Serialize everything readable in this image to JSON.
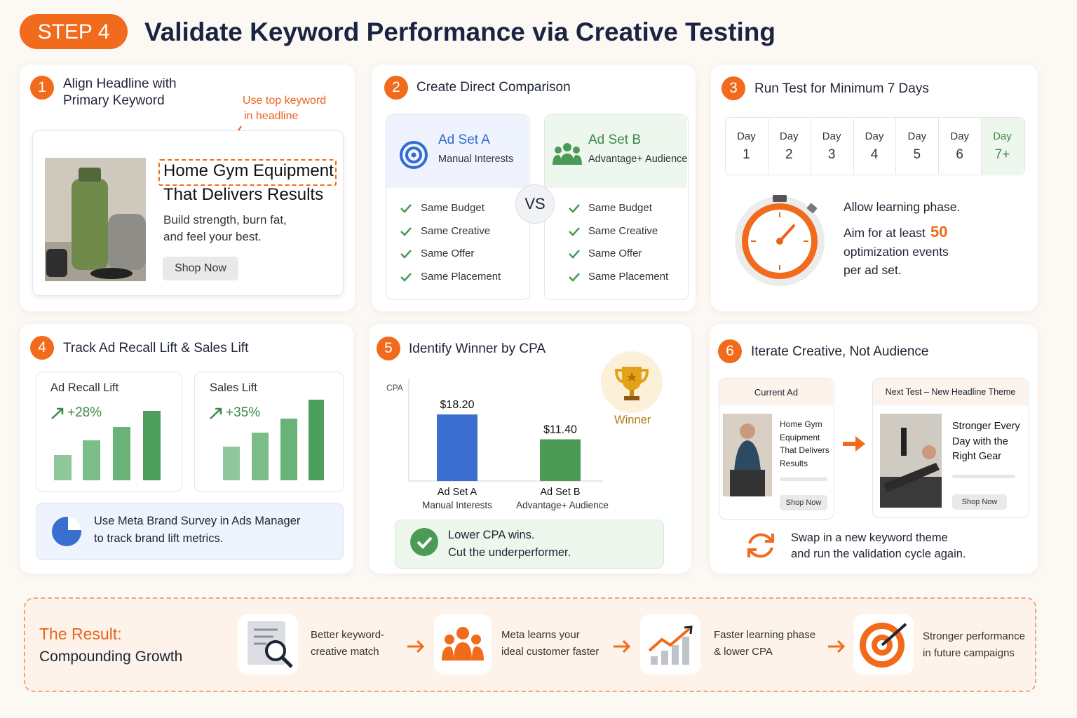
{
  "header": {
    "step": "STEP 4",
    "title": "Validate Keyword Performance via Creative Testing"
  },
  "step1": {
    "number": "1",
    "title_line1": "Align Headline with",
    "title_line2": "Primary Keyword",
    "annotation_line1": "Use top keyword",
    "annotation_line2": "in headline",
    "ad": {
      "headline_line1": "Home Gym Equipment",
      "headline_line2": "That Delivers Results",
      "body_line1": "Build strength, burn fat,",
      "body_line2": "and feel your best.",
      "button": "Shop Now"
    }
  },
  "step2": {
    "number": "2",
    "title": "Create Direct Comparison",
    "vs": "VS",
    "ad_a": {
      "name": "Ad Set A",
      "sub": "Manual Interests",
      "items": [
        "Same Budget",
        "Same Creative",
        "Same Offer",
        "Same Placement"
      ]
    },
    "ad_b": {
      "name": "Ad Set B",
      "sub": "Advantage+ Audience",
      "items": [
        "Same Budget",
        "Same Creative",
        "Same Offer",
        "Same Placement"
      ]
    }
  },
  "step3": {
    "number": "3",
    "title": "Run Test for Minimum 7 Days",
    "days": [
      {
        "word": "Day",
        "num": "1"
      },
      {
        "word": "Day",
        "num": "2"
      },
      {
        "word": "Day",
        "num": "3"
      },
      {
        "word": "Day",
        "num": "4"
      },
      {
        "word": "Day",
        "num": "5"
      },
      {
        "word": "Day",
        "num": "6"
      },
      {
        "word": "Day",
        "num": "7+"
      }
    ],
    "line1": "Allow learning phase.",
    "line2": "Aim for at least",
    "highlight": "50",
    "line3": "optimization events",
    "line4": "per ad set."
  },
  "step4": {
    "number": "4",
    "title": "Track Ad Recall Lift & Sales Lift",
    "cards": [
      {
        "label": "Ad Recall Lift",
        "lift": "+28%"
      },
      {
        "label": "Sales Lift",
        "lift": "+35%"
      }
    ],
    "note_line1": "Use Meta Brand Survey in Ads Manager",
    "note_line2": "to track brand lift metrics."
  },
  "step5": {
    "number": "5",
    "title": "Identify Winner by CPA",
    "winner": "Winner",
    "chart": {
      "type": "bar",
      "y_label": "CPA",
      "categories": [
        "Ad Set A",
        "Ad Set B"
      ],
      "subcategories": [
        "Manual Interests",
        "Advantage+ Audience"
      ],
      "values": [
        18.2,
        11.4
      ],
      "value_labels": [
        "$18.20",
        "$11.40"
      ],
      "colors": [
        "#3a6fd0",
        "#4b9a55"
      ],
      "ylim": [
        0,
        28
      ]
    },
    "note_line1": "Lower CPA wins.",
    "note_line2": "Cut the underperformer."
  },
  "step6": {
    "number": "6",
    "title": "Iterate Creative, Not Audience",
    "current": {
      "label": "Current Ad",
      "lines": [
        "Home Gym",
        "Equipment",
        "That Delivers",
        "Results"
      ],
      "button": "Shop Now"
    },
    "next": {
      "label": "Next Test – New Headline Theme",
      "lines": [
        "Stronger Every",
        "Day with the",
        "Right Gear"
      ],
      "button": "Shop Now"
    },
    "note_line1": "Swap in a new keyword theme",
    "note_line2": "and run the validation cycle again."
  },
  "result": {
    "title": "The Result:",
    "subtitle": "Compounding Growth",
    "steps": [
      {
        "line1": "Better keyword-",
        "line2": "creative match"
      },
      {
        "line1": "Meta learns your",
        "line2": "ideal customer faster"
      },
      {
        "line1": "Faster learning phase",
        "line2": "& lower CPA"
      },
      {
        "line1": "Stronger performance",
        "line2": "in future campaigns"
      }
    ]
  }
}
